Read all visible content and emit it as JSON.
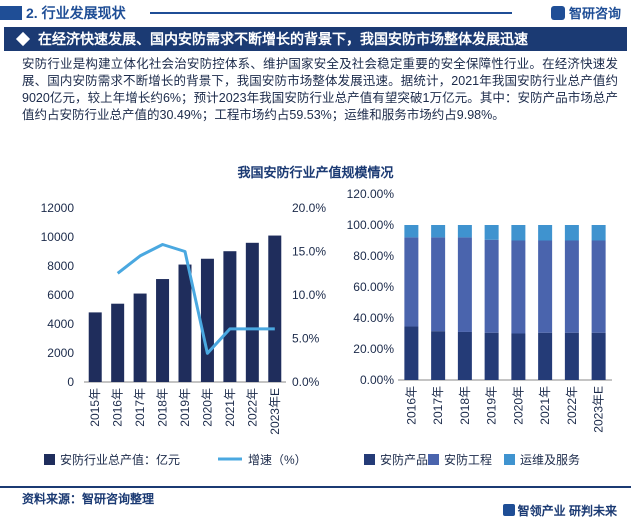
{
  "header": {
    "section_title": "2. 行业发展现状",
    "brand": "智研咨询",
    "brand_logo_icon": "zhiyan-logo-icon"
  },
  "banner": {
    "text": "在经济快速发展、国内安防需求不断增长的背景下，我国安防市场整体发展迅速"
  },
  "paragraph": "安防行业是构建立体化社会治安防控体系、维护国家安全及社会稳定重要的安全保障性行业。在经济快速发展、国内安防需求不断增长的背景下，我国安防市场整体发展迅速。据统计，2021年我国安防行业总产值约9020亿元，较上年增长约6%；预计2023年我国安防行业总产值有望突破1万亿元。其中：安防产品市场总产值约占安防行业总产值的30.49%；工程市场约占59.53%；运维和服务市场约占9.98%。",
  "chart_title": "我国安防行业产值规模情况",
  "colors": {
    "navy": "#1b3a73",
    "bar_dark": "#1f2d5c",
    "line_light": "#4aa8e0",
    "product": "#243b77",
    "engineering": "#4a64ad",
    "service": "#3f93cf"
  },
  "chart_data": [
    {
      "type": "bar",
      "categories": [
        "2015年",
        "2016年",
        "2017年",
        "2018年",
        "2019年",
        "2020年",
        "2021年",
        "2022年",
        "2023年E"
      ],
      "series": [
        {
          "name": "安防行业总产值：亿元",
          "type": "bar",
          "axis": "left",
          "values": [
            4800,
            5400,
            6100,
            7100,
            8100,
            8500,
            9020,
            9600,
            10100
          ]
        },
        {
          "name": "增速（%）",
          "type": "line",
          "axis": "right",
          "values": [
            null,
            0.125,
            0.145,
            0.158,
            0.15,
            0.033,
            0.061,
            0.061,
            0.061
          ]
        }
      ],
      "y_left": {
        "ylim": [
          0,
          12000
        ],
        "ticks": [
          "0",
          "2000",
          "4000",
          "6000",
          "8000",
          "10000",
          "12000"
        ]
      },
      "y_right": {
        "ylim": [
          0,
          0.2
        ],
        "ticks": [
          "0.0%",
          "5.0%",
          "10.0%",
          "15.0%",
          "20.0%"
        ]
      },
      "grid": false,
      "legend_position": "bottom"
    },
    {
      "type": "bar",
      "stacked": true,
      "categories": [
        "2016年",
        "2017年",
        "2018年",
        "2019年",
        "2020年",
        "2021年",
        "2022年",
        "2023年E"
      ],
      "series": [
        {
          "name": "安防产品",
          "values": [
            0.345,
            0.315,
            0.31,
            0.305,
            0.3,
            0.305,
            0.305,
            0.305
          ]
        },
        {
          "name": "安防工程",
          "values": [
            0.575,
            0.605,
            0.61,
            0.6,
            0.6,
            0.595,
            0.595,
            0.595
          ]
        },
        {
          "name": "运维及服务",
          "values": [
            0.08,
            0.08,
            0.08,
            0.095,
            0.1,
            0.1,
            0.1,
            0.1
          ]
        }
      ],
      "y": {
        "ylim": [
          0,
          1.2
        ],
        "ticks": [
          "0.00%",
          "20.00%",
          "40.00%",
          "60.00%",
          "80.00%",
          "100.00%",
          "120.00%"
        ]
      },
      "grid": false,
      "legend_position": "bottom"
    }
  ],
  "footer": {
    "source": "资料来源：智研咨询整理",
    "slogan": "智领产业  研判未来",
    "slogan_logo_icon": "zhiyan-small-logo-icon"
  }
}
